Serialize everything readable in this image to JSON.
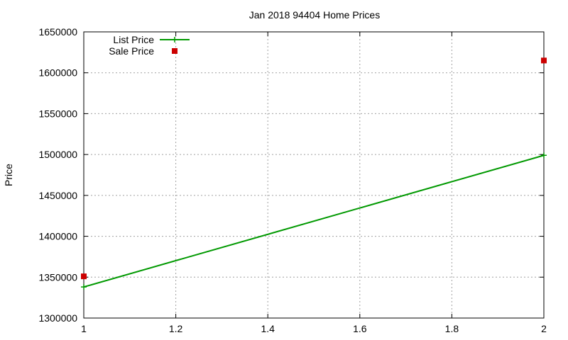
{
  "chart_data": {
    "type": "line",
    "title": "Jan 2018 94404 Home Prices",
    "xlabel": "",
    "ylabel": "Price",
    "xlim": [
      1,
      2
    ],
    "ylim": [
      1300000,
      1650000
    ],
    "x_ticks": [
      1,
      1.2,
      1.4,
      1.6,
      1.8,
      2
    ],
    "x_tick_labels": [
      "1",
      "1.2",
      "1.4",
      "1.6",
      "1.8",
      "2"
    ],
    "y_ticks": [
      1300000,
      1350000,
      1400000,
      1450000,
      1500000,
      1550000,
      1600000,
      1650000
    ],
    "y_tick_labels": [
      "1300000",
      "1350000",
      "1400000",
      "1450000",
      "1500000",
      "1550000",
      "1600000",
      "1650000"
    ],
    "grid": true,
    "legend_position": "top-left",
    "series": [
      {
        "name": "List Price",
        "style": "line",
        "color": "#009900",
        "points": [
          [
            1,
            1338000
          ],
          [
            2,
            1499000
          ]
        ]
      },
      {
        "name": "Sale Price",
        "style": "points",
        "color": "#cc0000",
        "points": [
          [
            1,
            1351000
          ],
          [
            2,
            1615000
          ]
        ]
      }
    ]
  }
}
